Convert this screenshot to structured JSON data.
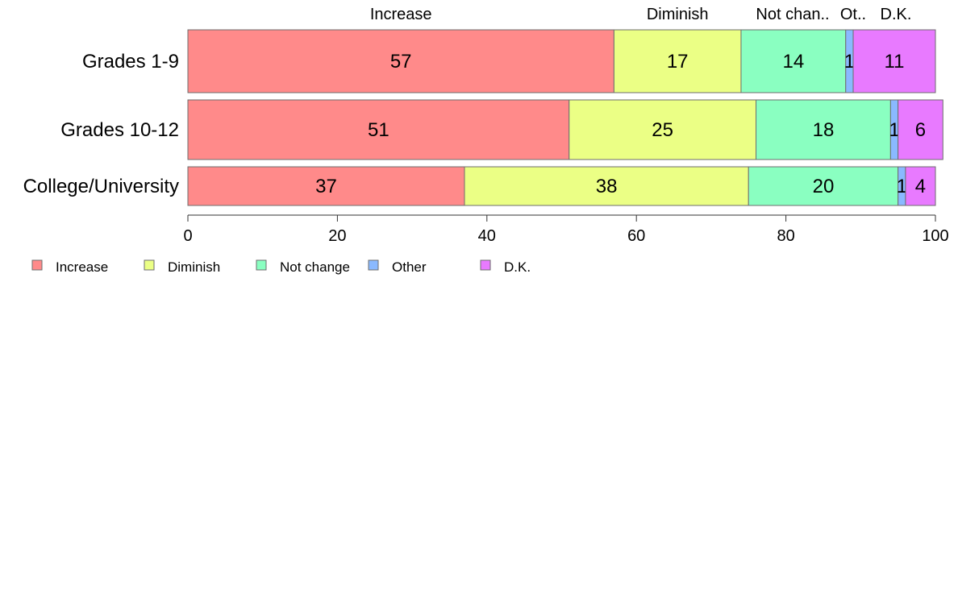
{
  "chart_data": {
    "type": "bar",
    "orientation": "horizontal",
    "stacked": true,
    "categories": [
      "Grades 1-9",
      "Grades 10-12",
      "College/University"
    ],
    "series": [
      {
        "name": "Increase",
        "values": [
          57,
          51,
          37
        ],
        "color": "#FF8A8A"
      },
      {
        "name": "Diminish",
        "values": [
          17,
          25,
          38
        ],
        "color": "#EBFF85"
      },
      {
        "name": "Not change",
        "values": [
          14,
          18,
          20
        ],
        "color": "#8AFFC1"
      },
      {
        "name": "Other",
        "values": [
          1,
          1,
          1
        ],
        "color": "#8AB9FF"
      },
      {
        "name": "D.K.",
        "values": [
          11,
          6,
          4
        ],
        "color": "#E87AFF"
      }
    ],
    "data_labels": [
      [
        "57",
        "17",
        "14",
        "1",
        "11"
      ],
      [
        "51",
        "25",
        "18",
        "1",
        "6"
      ],
      [
        "37",
        "38",
        "20",
        "1",
        "4"
      ]
    ],
    "top_labels": [
      "Increase",
      "Diminish",
      "Not chan..",
      "Ot..",
      "D.K."
    ],
    "xlim": [
      0,
      100
    ],
    "xticks": [
      "0",
      "20",
      "40",
      "60",
      "80",
      "100"
    ],
    "legend": {
      "position": "bottom-left",
      "items": [
        "Increase",
        "Diminish",
        "Not change",
        "Other",
        "D.K."
      ]
    },
    "grid": false
  }
}
